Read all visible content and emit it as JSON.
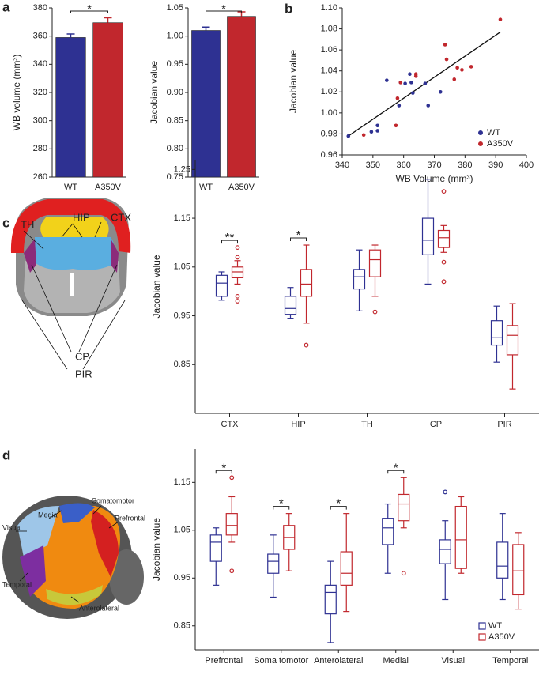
{
  "chart_data": [
    {
      "type": "bar",
      "panel_label": "a",
      "ylabel": "WB volume (mm³)",
      "categories": [
        "WT",
        "A350V"
      ],
      "values": [
        359,
        369.5
      ],
      "errors": [
        2.5,
        3.5
      ],
      "colors": [
        "#2e3192",
        "#c1272d"
      ],
      "ylim": [
        260,
        380
      ],
      "yticks": [
        260,
        280,
        300,
        320,
        340,
        360,
        380
      ],
      "significance": "*"
    },
    {
      "type": "bar",
      "ylabel": "Jacobian value",
      "categories": [
        "WT",
        "A350V"
      ],
      "values": [
        1.01,
        1.035
      ],
      "errors": [
        0.006,
        0.008
      ],
      "colors": [
        "#2e3192",
        "#c1272d"
      ],
      "ylim": [
        0.75,
        1.05
      ],
      "yticks": [
        0.75,
        {
          "value": 0.8,
          "label": "0.80"
        },
        0.85,
        {
          "value": 0.9,
          "label": "0.90"
        },
        0.95,
        {
          "value": 1,
          "label": "1.00"
        },
        1.05
      ],
      "significance": "*"
    },
    {
      "type": "scatter",
      "panel_label": "b",
      "xlabel": "WB Volume (mm³)",
      "ylabel": "Jacobian value",
      "series": [
        {
          "name": "WT",
          "color": "#2e3192",
          "x": [
            342,
            349.5,
            351.5,
            351.5,
            354.5,
            358.5,
            359,
            360.5,
            362,
            362.5,
            363,
            367,
            368,
            372
          ],
          "values": [
            0.978,
            0.982,
            0.983,
            0.988,
            1.031,
            1.007,
            1.029,
            1.028,
            1.037,
            1.029,
            1.019,
            1.028,
            1.007,
            1.02
          ]
        },
        {
          "name": "A350V",
          "color": "#c1272d",
          "x": [
            347,
            357.5,
            358,
            359,
            364,
            364,
            373.5,
            374,
            376.5,
            377.5,
            379,
            382,
            391.5
          ],
          "values": [
            0.979,
            0.988,
            1.014,
            1.029,
            1.035,
            1.037,
            1.065,
            1.051,
            1.032,
            1.043,
            1.041,
            1.044,
            1.089
          ]
        }
      ],
      "trendline": {
        "x": [
          342,
          391.5
        ],
        "values": [
          0.978,
          1.077
        ]
      },
      "xlim": [
        340,
        400
      ],
      "xticks": [
        340,
        350,
        360,
        370,
        380,
        390,
        400
      ],
      "ylim": [
        0.96,
        1.1
      ],
      "yticks": [
        0.96,
        0.98,
        {
          "value": 1,
          "label": "1.00"
        },
        1.02,
        1.04,
        1.06,
        1.08,
        {
          "value": 1.1,
          "label": "1.10"
        }
      ],
      "legend": "lower right"
    },
    {
      "type": "box",
      "panel_label": "c",
      "ylabel": "Jacobian value",
      "categories": [
        "CTX",
        "HIP",
        "TH",
        "CP",
        "PIR"
      ],
      "series": [
        {
          "name": "WT",
          "color": "#2e3192",
          "whislo": [
            0.982,
            0.945,
            0.96,
            1.015,
            0.855
          ],
          "q1": [
            0.99,
            0.953,
            1.005,
            1.075,
            0.89
          ],
          "median": [
            1.017,
            0.965,
            1.03,
            1.105,
            0.905
          ],
          "q3": [
            1.033,
            0.99,
            1.045,
            1.15,
            0.94
          ],
          "whishi": [
            1.04,
            1.008,
            1.085,
            1.23,
            0.97
          ],
          "fliers": [
            [],
            [],
            [],
            [],
            []
          ]
        },
        {
          "name": "A350V",
          "color": "#c1272d",
          "whislo": [
            1.015,
            0.935,
            0.99,
            1.08,
            0.8
          ],
          "q1": [
            1.028,
            0.99,
            1.03,
            1.09,
            0.87
          ],
          "median": [
            1.04,
            1.015,
            1.065,
            1.11,
            0.91
          ],
          "q3": [
            1.05,
            1.045,
            1.085,
            1.125,
            0.93
          ],
          "whishi": [
            1.063,
            1.095,
            1.095,
            1.135,
            0.975
          ],
          "fliers": [
            [
              0.98,
              0.99,
              1.07,
              1.09
            ],
            [
              0.89
            ],
            [
              0.958
            ],
            [
              1.02,
              1.06,
              1.205
            ],
            []
          ]
        }
      ],
      "significance": [
        "**",
        "*",
        null,
        null,
        null
      ],
      "ylim": [
        0.75,
        1.27
      ],
      "yticks": [
        0.85,
        0.95,
        1.05,
        1.15,
        1.25
      ],
      "image_labels": [
        "TH",
        "HIP",
        "CTX",
        "CP",
        "PIR"
      ]
    },
    {
      "type": "box",
      "panel_label": "d",
      "ylabel": "Jacobian value",
      "categories": [
        "Prefrontal",
        "Soma tomotor",
        "Anterolateral",
        "Medial",
        "Visual",
        "Temporal"
      ],
      "series": [
        {
          "name": "WT",
          "color": "#2e3192",
          "whislo": [
            0.935,
            0.91,
            0.815,
            0.96,
            0.905,
            0.905
          ],
          "q1": [
            0.985,
            0.96,
            0.875,
            1.02,
            0.98,
            0.95
          ],
          "median": [
            1.025,
            0.985,
            0.92,
            1.055,
            1.01,
            0.975
          ],
          "q3": [
            1.04,
            1.0,
            0.935,
            1.075,
            1.03,
            1.025
          ],
          "whishi": [
            1.055,
            1.04,
            0.985,
            1.105,
            1.07,
            1.085
          ],
          "fliers": [
            [],
            [],
            [],
            [],
            [
              1.13
            ],
            []
          ]
        },
        {
          "name": "A350V",
          "color": "#c1272d",
          "whislo": [
            1.025,
            0.965,
            0.88,
            1.055,
            0.96,
            0.885
          ],
          "q1": [
            1.04,
            1.01,
            0.935,
            1.07,
            0.97,
            0.915
          ],
          "median": [
            1.06,
            1.035,
            0.96,
            1.105,
            1.03,
            0.965
          ],
          "q3": [
            1.085,
            1.06,
            1.005,
            1.125,
            1.1,
            1.02
          ],
          "whishi": [
            1.12,
            1.085,
            1.085,
            1.16,
            1.12,
            1.045
          ],
          "fliers": [
            [
              0.965,
              1.16
            ],
            [],
            [],
            [
              0.96
            ],
            [],
            []
          ]
        }
      ],
      "significance": [
        "*",
        "*",
        "*",
        "*",
        null,
        null
      ],
      "ylim": [
        0.8,
        1.22
      ],
      "yticks": [
        0.85,
        0.95,
        1.05,
        1.15
      ],
      "legend": "lower right",
      "image_labels": [
        "Visual",
        "Medial",
        "Somatomotor",
        "Prefrontal",
        "Temporal",
        "Anterolateral"
      ]
    }
  ]
}
